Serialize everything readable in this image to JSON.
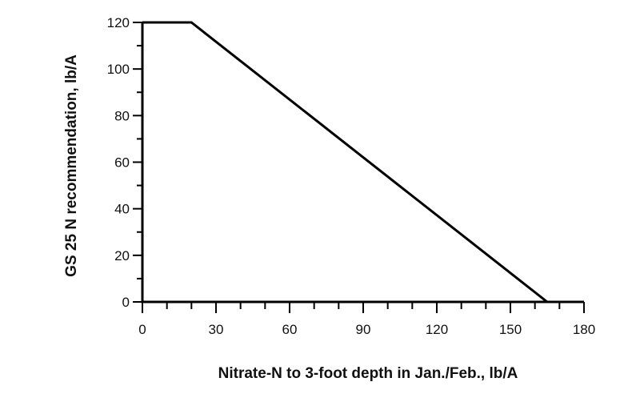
{
  "chart_data": {
    "type": "line",
    "xlabel": "Nitrate-N to 3-foot depth in Jan./Feb., lb/A",
    "ylabel": "GS 25 N recommendation, lb/A",
    "xlim": [
      0,
      180
    ],
    "ylim": [
      0,
      120
    ],
    "x_ticks": [
      0,
      30,
      60,
      90,
      120,
      150,
      180
    ],
    "y_ticks": [
      0,
      20,
      40,
      60,
      80,
      100,
      120
    ],
    "x_minor_step": 10,
    "y_minor_step": 10,
    "grid": false,
    "series": [
      {
        "x": [
          0,
          20,
          165,
          180
        ],
        "y": [
          120,
          120,
          0,
          0
        ]
      }
    ]
  }
}
